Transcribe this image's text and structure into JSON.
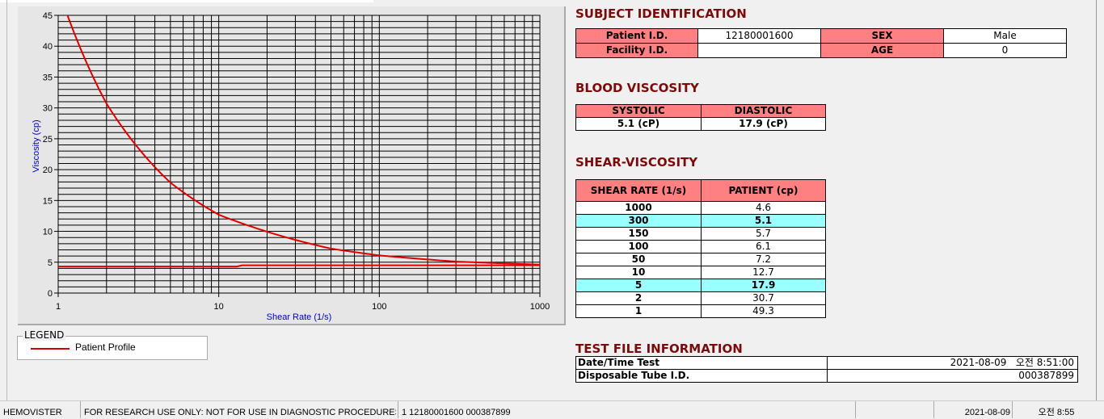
{
  "chart_data": {
    "type": "line",
    "xlabel": "Shear Rate (1/s)",
    "ylabel": "Viscosity (cp)",
    "xscale": "log",
    "xlim": [
      1,
      1000
    ],
    "ylim": [
      0,
      45
    ],
    "xticks": [
      "1",
      "10",
      "100",
      "1000"
    ],
    "yticks": [
      "0",
      "5",
      "10",
      "15",
      "20",
      "25",
      "30",
      "35",
      "40",
      "45"
    ],
    "grid": true,
    "series": [
      {
        "name": "Patient Profile",
        "color": "#e00000",
        "x": [
          1,
          2,
          5,
          10,
          50,
          100,
          150,
          300,
          1000
        ],
        "y": [
          49.3,
          30.7,
          17.9,
          12.7,
          7.2,
          6.1,
          5.7,
          5.1,
          4.6
        ]
      },
      {
        "color": "#e00000",
        "x": [
          1,
          13,
          14,
          1000
        ],
        "y": [
          4.3,
          4.3,
          4.5,
          4.5
        ]
      }
    ],
    "legend": {
      "title": "LEGEND",
      "entries": [
        "Patient Profile"
      ],
      "placement": "bottom-left"
    }
  },
  "subject": {
    "title": "SUBJECT IDENTIFICATION",
    "patient_id_label": "Patient I.D.",
    "patient_id": "12180001600",
    "sex_label": "SEX",
    "sex": "Male",
    "facility_label": "Facility I.D.",
    "facility": "",
    "age_label": "AGE",
    "age": "0"
  },
  "blood": {
    "title": "BLOOD VISCOSITY",
    "systolic_label": "SYSTOLIC",
    "diastolic_label": "DIASTOLIC",
    "systolic": "5.1 (cP)",
    "diastolic": "17.9 (cP)"
  },
  "shear": {
    "title": "SHEAR-VISCOSITY",
    "col1": "SHEAR RATE (1/s)",
    "col2": "PATIENT (cp)",
    "highlight_color": "#99ffff",
    "rows": [
      [
        "1000",
        "4.6"
      ],
      [
        "300",
        "5.1"
      ],
      [
        "150",
        "5.7"
      ],
      [
        "100",
        "6.1"
      ],
      [
        "50",
        "7.2"
      ],
      [
        "10",
        "12.7"
      ],
      [
        "5",
        "17.9"
      ],
      [
        "2",
        "30.7"
      ],
      [
        "1",
        "49.3"
      ]
    ],
    "highlighted": [
      "300",
      "5"
    ]
  },
  "testfile": {
    "title": "TEST FILE INFORMATION",
    "date_label": "Date/Time Test",
    "date": "2021-08-09   오전 8:51:00",
    "tube_label": "Disposable Tube I.D.",
    "tube": "000387899"
  },
  "status": {
    "app": "HEMOVISTER",
    "notice": "FOR RESEARCH USE ONLY: NOT FOR USE IN DIAGNOSTIC PROCEDURES",
    "record": "1  12180001600  000387899",
    "empty": "",
    "date": "2021-08-09",
    "time": "오전 8:55"
  }
}
